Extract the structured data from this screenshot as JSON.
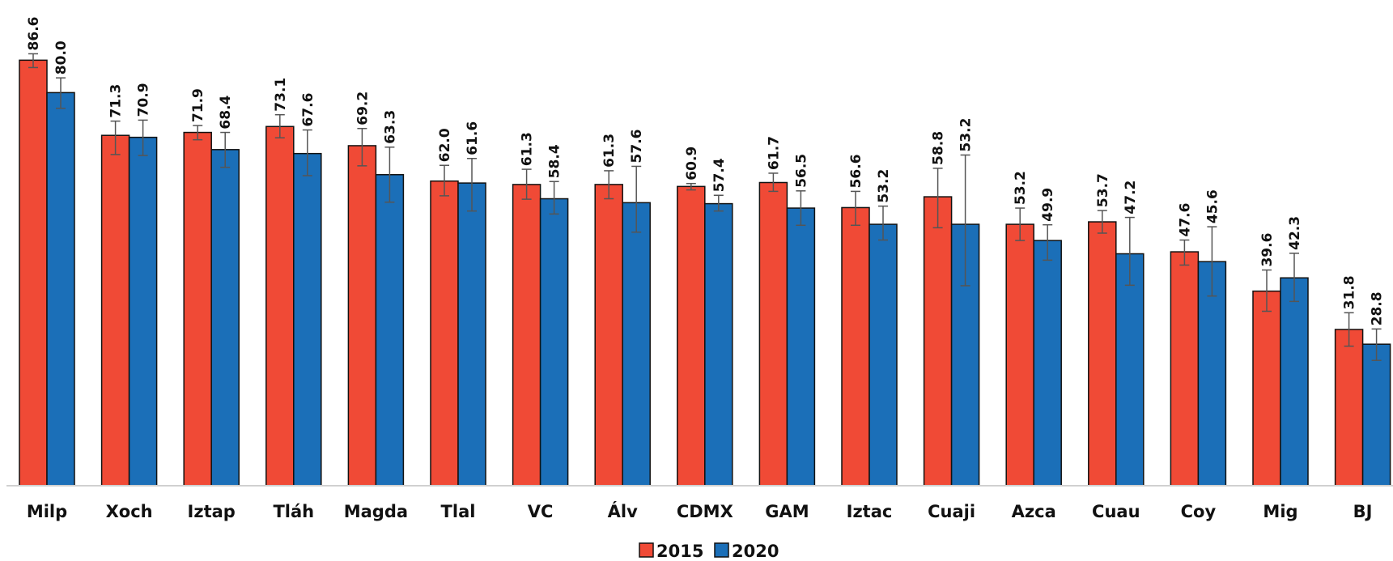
{
  "chart_data": {
    "type": "bar",
    "title": "",
    "xlabel": "",
    "ylabel": "",
    "ylim": [
      0,
      90
    ],
    "grid": false,
    "legend": "bottom-center",
    "categories": [
      "Milp",
      "Xoch",
      "Iztap",
      "Tláh",
      "Magda",
      "Tlal",
      "VC",
      "Álv",
      "CDMX",
      "GAM",
      "Iztac",
      "Cuaji",
      "Azca",
      "Cuau",
      "Coy",
      "Mig",
      "BJ"
    ],
    "series": [
      {
        "name": "2015",
        "color": "#f04a36",
        "values": [
          86.6,
          71.3,
          71.9,
          73.1,
          69.2,
          62.0,
          61.3,
          61.3,
          60.9,
          61.7,
          56.6,
          58.8,
          53.2,
          53.7,
          47.6,
          39.6,
          31.8
        ],
        "labels": [
          "86.6",
          "71.3",
          "71.9",
          "73.1",
          "69.2",
          "62.0",
          "61.3",
          "61.3",
          "60.9",
          "61.7",
          "56.6",
          "58.8",
          "53.2",
          "53.7",
          "47.6",
          "39.6",
          "31.8"
        ],
        "err_low": [
          85.1,
          67.4,
          70.4,
          70.8,
          65.1,
          59.0,
          58.3,
          58.4,
          60.2,
          59.9,
          53.0,
          52.5,
          49.9,
          51.4,
          44.9,
          35.5,
          28.4
        ],
        "err_high": [
          87.9,
          74.2,
          73.3,
          75.5,
          72.7,
          65.2,
          64.4,
          64.1,
          61.5,
          63.6,
          59.9,
          64.6,
          56.5,
          56.0,
          50.0,
          43.9,
          35.2
        ]
      },
      {
        "name": "2020",
        "color": "#1b6fb8",
        "values": [
          80.0,
          70.9,
          68.4,
          67.6,
          63.3,
          61.6,
          58.4,
          57.6,
          57.4,
          56.5,
          53.2,
          53.2,
          49.9,
          47.2,
          45.6,
          42.3,
          28.8
        ],
        "labels": [
          "80.0",
          "70.9",
          "68.4",
          "67.6",
          "63.3",
          "61.6",
          "58.4",
          "57.6",
          "57.4",
          "56.5",
          "53.2",
          "53.2",
          "49.9",
          "47.2",
          "45.6",
          "42.3",
          "28.8"
        ],
        "err_low": [
          76.8,
          67.2,
          64.8,
          63.1,
          57.7,
          55.9,
          55.3,
          51.6,
          55.9,
          53.0,
          50.0,
          40.7,
          45.9,
          40.8,
          38.6,
          37.5,
          25.5
        ],
        "err_high": [
          83.0,
          74.4,
          71.9,
          72.4,
          68.9,
          66.6,
          61.9,
          65.0,
          59.1,
          60.0,
          56.9,
          67.3,
          53.1,
          54.6,
          52.7,
          47.3,
          31.9
        ]
      }
    ]
  }
}
